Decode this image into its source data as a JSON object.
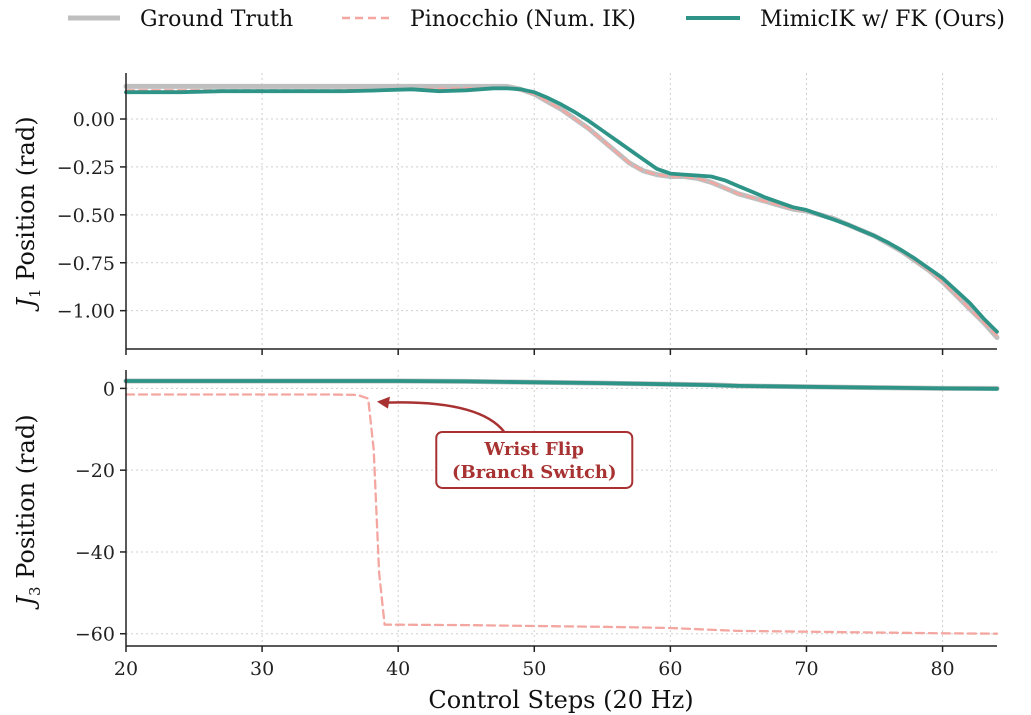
{
  "legend": [
    {
      "label": "Ground Truth",
      "color": "#bfbfbf",
      "style": "solid"
    },
    {
      "label": "Pinocchio (Num. IK)",
      "color": "#f4a6a0",
      "style": "dashed"
    },
    {
      "label": "MimicIK w/ FK (Ours)",
      "color": "#2e9488",
      "style": "solid"
    }
  ],
  "chart_data": [
    {
      "type": "line",
      "ylabel_prefix": "J",
      "ylabel_sub": "1",
      "ylabel_suffix": " Position (rad)",
      "xlim": [
        20,
        84
      ],
      "ylim": [
        -1.2,
        0.24
      ],
      "yticks": [
        0.0,
        -0.25,
        -0.5,
        -0.75,
        -1.0
      ],
      "ytick_labels": [
        "0.00",
        "−0.25",
        "−0.50",
        "−0.75",
        "−1.00"
      ],
      "xticks": [
        20,
        30,
        40,
        50,
        60,
        70,
        80
      ],
      "grid": true,
      "series": [
        {
          "name": "Ground Truth",
          "color": "#bfbfbf",
          "style": "solid",
          "x": [
            20,
            25,
            30,
            35,
            40,
            45,
            47,
            48,
            49,
            50,
            51,
            52,
            53,
            54,
            55,
            56,
            57,
            58,
            59,
            60,
            61,
            62,
            63,
            64,
            65,
            66,
            67,
            68,
            69,
            70,
            71,
            72,
            73,
            74,
            75,
            76,
            77,
            78,
            79,
            80,
            81,
            82,
            83,
            84
          ],
          "y": [
            0.17,
            0.17,
            0.17,
            0.17,
            0.17,
            0.17,
            0.17,
            0.17,
            0.155,
            0.13,
            0.09,
            0.05,
            0.0,
            -0.05,
            -0.11,
            -0.17,
            -0.23,
            -0.27,
            -0.29,
            -0.3,
            -0.3,
            -0.31,
            -0.33,
            -0.36,
            -0.39,
            -0.41,
            -0.43,
            -0.45,
            -0.47,
            -0.48,
            -0.5,
            -0.52,
            -0.55,
            -0.58,
            -0.61,
            -0.65,
            -0.69,
            -0.74,
            -0.79,
            -0.85,
            -0.92,
            -0.99,
            -1.06,
            -1.14
          ]
        },
        {
          "name": "Pinocchio (Num. IK)",
          "color": "#f4a6a0",
          "style": "dashed",
          "x": [
            20,
            25,
            30,
            35,
            40,
            45,
            47,
            48,
            49,
            50,
            51,
            52,
            53,
            54,
            55,
            56,
            57,
            58,
            59,
            60,
            61,
            62,
            63,
            64,
            65,
            66,
            67,
            68,
            69,
            70,
            71,
            72,
            73,
            74,
            75,
            76,
            77,
            78,
            79,
            80,
            81,
            82,
            83,
            84
          ],
          "y": [
            0.15,
            0.15,
            0.15,
            0.15,
            0.155,
            0.16,
            0.16,
            0.16,
            0.15,
            0.13,
            0.09,
            0.05,
            0.0,
            -0.05,
            -0.11,
            -0.17,
            -0.23,
            -0.27,
            -0.29,
            -0.3,
            -0.3,
            -0.31,
            -0.33,
            -0.36,
            -0.39,
            -0.41,
            -0.43,
            -0.45,
            -0.47,
            -0.48,
            -0.5,
            -0.52,
            -0.55,
            -0.58,
            -0.61,
            -0.65,
            -0.69,
            -0.74,
            -0.79,
            -0.85,
            -0.92,
            -0.99,
            -1.06,
            -1.13
          ]
        },
        {
          "name": "MimicIK w/ FK (Ours)",
          "color": "#2e9488",
          "style": "solid",
          "x": [
            20,
            22,
            24,
            27,
            30,
            33,
            36,
            38,
            41,
            43,
            45,
            47,
            48,
            49,
            50,
            51,
            52,
            53,
            54,
            55,
            56,
            57,
            58,
            59,
            60,
            61,
            62,
            63,
            64,
            65,
            66,
            67,
            68,
            69,
            70,
            71,
            72,
            73,
            74,
            75,
            76,
            77,
            78,
            79,
            80,
            81,
            82,
            83,
            84
          ],
          "y": [
            0.14,
            0.14,
            0.14,
            0.145,
            0.145,
            0.145,
            0.145,
            0.148,
            0.155,
            0.145,
            0.15,
            0.16,
            0.16,
            0.155,
            0.14,
            0.11,
            0.075,
            0.035,
            -0.01,
            -0.06,
            -0.11,
            -0.16,
            -0.21,
            -0.26,
            -0.285,
            -0.29,
            -0.295,
            -0.3,
            -0.32,
            -0.35,
            -0.38,
            -0.41,
            -0.435,
            -0.46,
            -0.475,
            -0.5,
            -0.525,
            -0.55,
            -0.58,
            -0.61,
            -0.645,
            -0.685,
            -0.73,
            -0.78,
            -0.83,
            -0.895,
            -0.96,
            -1.04,
            -1.11
          ]
        }
      ]
    },
    {
      "type": "line",
      "ylabel_prefix": "J",
      "ylabel_sub": "3",
      "ylabel_suffix": " Position (rad)",
      "xlabel": "Control Steps (20 Hz)",
      "xlim": [
        20,
        84
      ],
      "ylim": [
        -63,
        4.5
      ],
      "yticks": [
        0,
        -20,
        -40,
        -60
      ],
      "ytick_labels": [
        "0",
        "−20",
        "−40",
        "−60"
      ],
      "xticks": [
        20,
        30,
        40,
        50,
        60,
        70,
        80
      ],
      "xtick_labels": [
        "20",
        "30",
        "40",
        "50",
        "60",
        "70",
        "80"
      ],
      "grid": true,
      "series": [
        {
          "name": "Ground Truth",
          "color": "#bfbfbf",
          "style": "solid",
          "x": [
            20,
            30,
            40,
            45,
            50,
            55,
            60,
            63,
            65,
            70,
            75,
            80,
            84
          ],
          "y": [
            1.8,
            1.8,
            1.8,
            1.7,
            1.5,
            1.3,
            1.0,
            0.9,
            0.6,
            0.4,
            0.2,
            0.0,
            0.0
          ]
        },
        {
          "name": "Pinocchio (Num. IK)",
          "color": "#f4a6a0",
          "style": "dashed",
          "x": [
            20,
            25,
            30,
            35,
            37,
            37.8,
            38.2,
            38.6,
            39.0,
            40,
            45,
            50,
            55,
            60,
            62,
            65,
            70,
            75,
            80,
            84
          ],
          "y": [
            -1.5,
            -1.5,
            -1.5,
            -1.5,
            -1.6,
            -2.5,
            -15,
            -45,
            -57.8,
            -57.8,
            -57.9,
            -58.1,
            -58.3,
            -58.6,
            -58.9,
            -59.3,
            -59.5,
            -59.7,
            -59.9,
            -60.0
          ]
        },
        {
          "name": "MimicIK w/ FK (Ours)",
          "color": "#2e9488",
          "style": "solid",
          "x": [
            20,
            30,
            40,
            45,
            50,
            55,
            60,
            63,
            65,
            70,
            75,
            80,
            84
          ],
          "y": [
            1.8,
            1.8,
            1.8,
            1.7,
            1.5,
            1.3,
            1.0,
            0.8,
            0.6,
            0.4,
            0.2,
            0.0,
            -0.1
          ]
        }
      ],
      "annotations": [
        {
          "line1": "Wrist Flip",
          "line2": "(Branch Switch)",
          "arrow_to": [
            38,
            -2.5
          ],
          "text_at": [
            50,
            -17.5
          ]
        }
      ]
    }
  ]
}
